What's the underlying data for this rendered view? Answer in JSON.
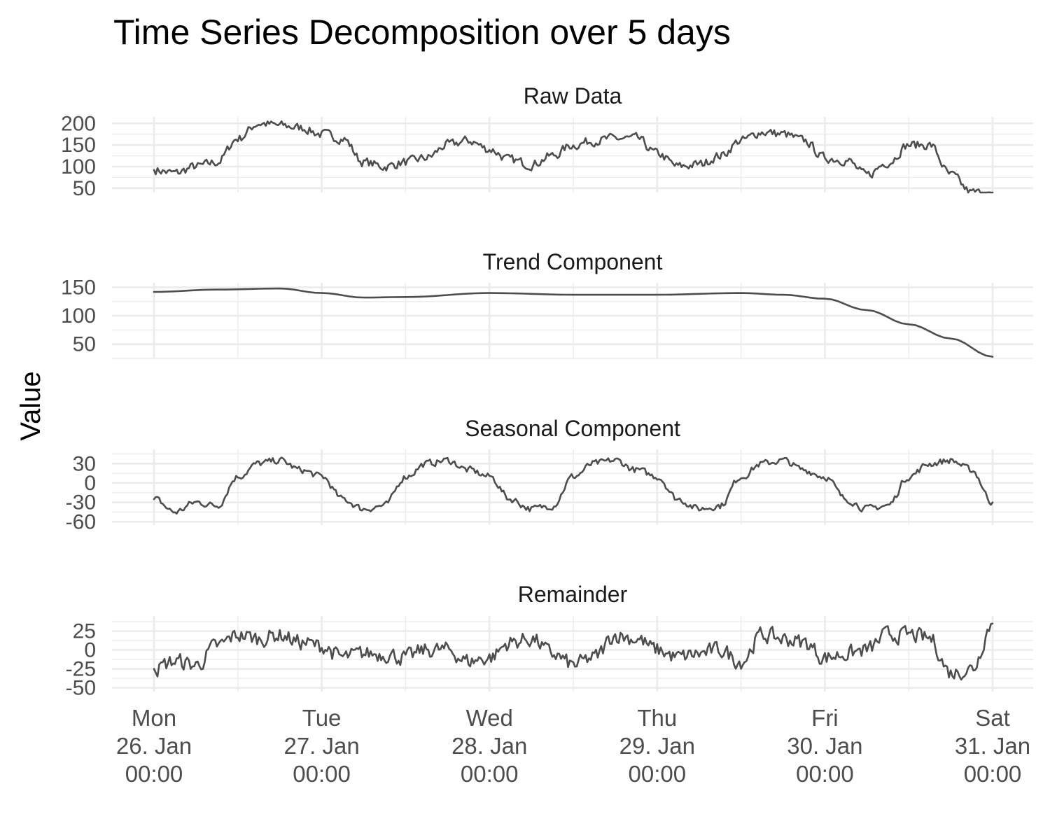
{
  "chart_data": {
    "type": "line",
    "title": "Time Series Decomposition over 5 days",
    "ylabel": "Value",
    "xlabel": "",
    "x_axis": {
      "range": [
        "2026-01-26T00:00",
        "2026-01-31T00:00"
      ],
      "ticks": [
        {
          "day": "Mon",
          "date": "26. Jan",
          "time": "00:00"
        },
        {
          "day": "Tue",
          "date": "27. Jan",
          "time": "00:00"
        },
        {
          "day": "Wed",
          "date": "28. Jan",
          "time": "00:00"
        },
        {
          "day": "Thu",
          "date": "29. Jan",
          "time": "00:00"
        },
        {
          "day": "Fri",
          "date": "30. Jan",
          "time": "00:00"
        },
        {
          "day": "Sat",
          "date": "31. Jan",
          "time": "00:00"
        }
      ]
    },
    "grid": true,
    "panels": [
      {
        "name": "Raw Data",
        "ylim": [
          40,
          215
        ],
        "yticks": [
          50,
          100,
          150,
          200
        ],
        "x": [
          "2026-01-26T00:00",
          "2026-01-26T03:00",
          "2026-01-26T06:00",
          "2026-01-26T09:00",
          "2026-01-26T12:00",
          "2026-01-26T15:00",
          "2026-01-26T18:00",
          "2026-01-26T21:00",
          "2026-01-27T00:00",
          "2026-01-27T03:00",
          "2026-01-27T06:00",
          "2026-01-27T09:00",
          "2026-01-27T12:00",
          "2026-01-27T15:00",
          "2026-01-27T18:00",
          "2026-01-27T21:00",
          "2026-01-28T00:00",
          "2026-01-28T03:00",
          "2026-01-28T06:00",
          "2026-01-28T09:00",
          "2026-01-28T12:00",
          "2026-01-28T15:00",
          "2026-01-28T18:00",
          "2026-01-28T21:00",
          "2026-01-29T00:00",
          "2026-01-29T03:00",
          "2026-01-29T06:00",
          "2026-01-29T09:00",
          "2026-01-29T12:00",
          "2026-01-29T15:00",
          "2026-01-29T18:00",
          "2026-01-29T21:00",
          "2026-01-30T00:00",
          "2026-01-30T03:00",
          "2026-01-30T06:00",
          "2026-01-30T09:00",
          "2026-01-30T12:00",
          "2026-01-30T15:00",
          "2026-01-30T18:00",
          "2026-01-30T21:00",
          "2026-01-31T00:00"
        ],
        "values": [
          92,
          85,
          100,
          110,
          165,
          200,
          195,
          190,
          175,
          165,
          110,
          100,
          110,
          120,
          150,
          160,
          140,
          115,
          105,
          125,
          150,
          160,
          165,
          165,
          130,
          100,
          105,
          125,
          160,
          180,
          175,
          160,
          120,
          115,
          80,
          110,
          150,
          150,
          80,
          40,
          35
        ]
      },
      {
        "name": "Trend Component",
        "ylim": [
          25,
          158
        ],
        "yticks": [
          50,
          100,
          150
        ],
        "x": [
          "2026-01-26T00:00",
          "2026-01-26T09:00",
          "2026-01-26T18:00",
          "2026-01-27T00:00",
          "2026-01-27T06:00",
          "2026-01-27T12:00",
          "2026-01-28T00:00",
          "2026-01-28T12:00",
          "2026-01-29T00:00",
          "2026-01-29T12:00",
          "2026-01-29T18:00",
          "2026-01-30T00:00",
          "2026-01-30T06:00",
          "2026-01-30T12:00",
          "2026-01-30T18:00",
          "2026-01-31T00:00"
        ],
        "values": [
          142,
          146,
          148,
          140,
          132,
          133,
          140,
          137,
          137,
          140,
          137,
          130,
          110,
          85,
          60,
          28
        ]
      },
      {
        "name": "Seasonal Component",
        "ylim": [
          -65,
          52
        ],
        "yticks": [
          -60,
          -30,
          0,
          30
        ],
        "x": [
          "2026-01-26T00:00",
          "2026-01-26T03:00",
          "2026-01-26T06:00",
          "2026-01-26T09:00",
          "2026-01-26T12:00",
          "2026-01-26T15:00",
          "2026-01-26T18:00",
          "2026-01-26T21:00",
          "2026-01-27T00:00",
          "2026-01-27T03:00",
          "2026-01-27T06:00",
          "2026-01-27T09:00",
          "2026-01-27T12:00",
          "2026-01-27T15:00",
          "2026-01-27T18:00",
          "2026-01-27T21:00",
          "2026-01-28T00:00",
          "2026-01-28T03:00",
          "2026-01-28T06:00",
          "2026-01-28T09:00",
          "2026-01-28T12:00",
          "2026-01-28T15:00",
          "2026-01-28T18:00",
          "2026-01-28T21:00",
          "2026-01-29T00:00",
          "2026-01-29T03:00",
          "2026-01-29T06:00",
          "2026-01-29T09:00",
          "2026-01-29T12:00",
          "2026-01-29T15:00",
          "2026-01-29T18:00",
          "2026-01-29T21:00",
          "2026-01-30T00:00",
          "2026-01-30T03:00",
          "2026-01-30T06:00",
          "2026-01-30T09:00",
          "2026-01-30T12:00",
          "2026-01-30T15:00",
          "2026-01-30T18:00",
          "2026-01-30T21:00",
          "2026-01-31T00:00"
        ],
        "values": [
          -25,
          -45,
          -30,
          -35,
          10,
          30,
          35,
          20,
          10,
          -25,
          -40,
          -35,
          10,
          30,
          35,
          20,
          10,
          -25,
          -40,
          -35,
          10,
          30,
          35,
          20,
          10,
          -25,
          -40,
          -35,
          10,
          30,
          35,
          20,
          10,
          -25,
          -40,
          -35,
          10,
          30,
          35,
          20,
          -30
        ]
      },
      {
        "name": "Remainder",
        "ylim": [
          -55,
          45
        ],
        "yticks": [
          -50,
          -25,
          0,
          25
        ],
        "x": [
          "2026-01-26T00:00",
          "2026-01-26T03:00",
          "2026-01-26T06:00",
          "2026-01-26T09:00",
          "2026-01-26T12:00",
          "2026-01-26T15:00",
          "2026-01-26T18:00",
          "2026-01-26T21:00",
          "2026-01-27T00:00",
          "2026-01-27T03:00",
          "2026-01-27T06:00",
          "2026-01-27T09:00",
          "2026-01-27T12:00",
          "2026-01-27T15:00",
          "2026-01-27T18:00",
          "2026-01-27T21:00",
          "2026-01-28T00:00",
          "2026-01-28T03:00",
          "2026-01-28T06:00",
          "2026-01-28T09:00",
          "2026-01-28T12:00",
          "2026-01-28T15:00",
          "2026-01-28T18:00",
          "2026-01-28T21:00",
          "2026-01-29T00:00",
          "2026-01-29T03:00",
          "2026-01-29T06:00",
          "2026-01-29T09:00",
          "2026-01-29T12:00",
          "2026-01-29T15:00",
          "2026-01-29T18:00",
          "2026-01-29T21:00",
          "2026-01-30T00:00",
          "2026-01-30T03:00",
          "2026-01-30T06:00",
          "2026-01-30T09:00",
          "2026-01-30T12:00",
          "2026-01-30T15:00",
          "2026-01-30T18:00",
          "2026-01-30T21:00",
          "2026-01-31T00:00"
        ],
        "values": [
          -25,
          -15,
          -20,
          5,
          20,
          15,
          20,
          10,
          5,
          -10,
          -5,
          -5,
          -10,
          0,
          0,
          -15,
          -10,
          10,
          15,
          -5,
          -20,
          -10,
          20,
          15,
          0,
          -10,
          -5,
          0,
          -15,
          20,
          15,
          10,
          -10,
          -5,
          0,
          20,
          20,
          15,
          -30,
          -25,
          35
        ]
      }
    ]
  }
}
